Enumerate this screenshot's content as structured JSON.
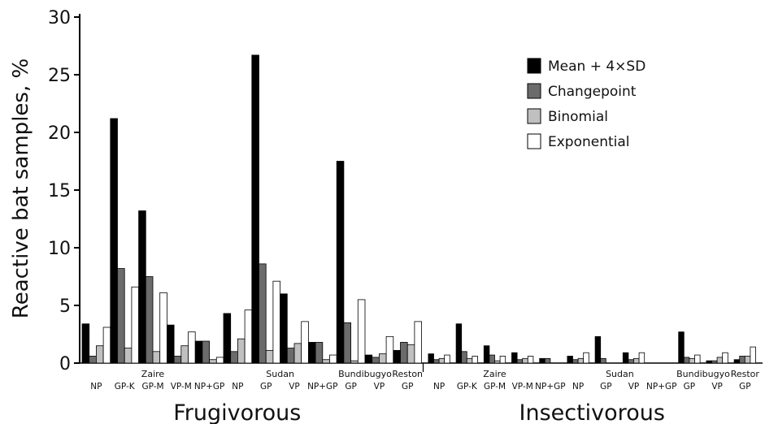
{
  "chart_data": {
    "type": "bar",
    "ylabel": "Reactive bat samples, %",
    "ylim": [
      0,
      30
    ],
    "yticks": [
      0,
      5,
      10,
      15,
      20,
      25,
      30
    ],
    "legend_position": "top-right",
    "series": [
      {
        "name": "Mean + 4×SD",
        "color": "#000000"
      },
      {
        "name": "Changepoint",
        "color": "#6b6b6b"
      },
      {
        "name": "Binomial",
        "color": "#c0c0c0"
      },
      {
        "name": "Exponential",
        "color": "#ffffff"
      }
    ],
    "panels": [
      {
        "label": "Frugivorous",
        "species": [
          {
            "name": "Zaire",
            "antigens": [
              "NP",
              "GP-K",
              "GP-M",
              "VP-M",
              "NP+GP"
            ]
          },
          {
            "name": "Sudan",
            "antigens": [
              "NP",
              "GP",
              "VP",
              "NP+GP"
            ]
          },
          {
            "name": "Bundibugyo",
            "antigens": [
              "GP",
              "VP"
            ]
          },
          {
            "name": "Reston",
            "antigens": [
              "GP"
            ]
          }
        ],
        "values": [
          [
            3.4,
            0.6,
            1.5,
            3.1
          ],
          [
            21.2,
            8.2,
            1.3,
            6.6
          ],
          [
            13.2,
            7.5,
            1.0,
            6.1
          ],
          [
            3.3,
            0.6,
            1.5,
            2.7
          ],
          [
            1.9,
            1.9,
            0.3,
            0.5
          ],
          [
            4.3,
            1.0,
            2.1,
            4.6
          ],
          [
            26.7,
            8.6,
            1.1,
            7.1
          ],
          [
            6.0,
            1.3,
            1.7,
            3.6
          ],
          [
            1.8,
            1.8,
            0.3,
            0.7
          ],
          [
            17.5,
            3.5,
            0.2,
            5.5
          ],
          [
            0.7,
            0.5,
            0.8,
            2.3
          ],
          [
            1.1,
            1.8,
            1.6,
            3.6
          ]
        ]
      },
      {
        "label": "Insectivorous",
        "species": [
          {
            "name": "Zaire",
            "antigens": [
              "NP",
              "GP-K",
              "GP-M",
              "VP-M",
              "NP+GP"
            ]
          },
          {
            "name": "Sudan",
            "antigens": [
              "NP",
              "GP",
              "VP",
              "NP+GP"
            ]
          },
          {
            "name": "Bundibugyo",
            "antigens": [
              "GP",
              "VP"
            ]
          },
          {
            "name": "Restor",
            "antigens": [
              "GP"
            ]
          }
        ],
        "values": [
          [
            0.8,
            0.3,
            0.4,
            0.7
          ],
          [
            3.4,
            1.0,
            0.4,
            0.6
          ],
          [
            1.5,
            0.7,
            0.2,
            0.6
          ],
          [
            0.9,
            0.3,
            0.4,
            0.6
          ],
          [
            0.4,
            0.4,
            0.0,
            0.0
          ],
          [
            0.6,
            0.3,
            0.4,
            0.9
          ],
          [
            2.3,
            0.4,
            0.0,
            0.0
          ],
          [
            0.9,
            0.3,
            0.4,
            0.9
          ],
          [
            0.0,
            0.0,
            0.0,
            0.0
          ],
          [
            2.7,
            0.5,
            0.4,
            0.7
          ],
          [
            0.2,
            0.2,
            0.5,
            0.9
          ],
          [
            0.3,
            0.6,
            0.6,
            1.4
          ]
        ]
      }
    ]
  }
}
